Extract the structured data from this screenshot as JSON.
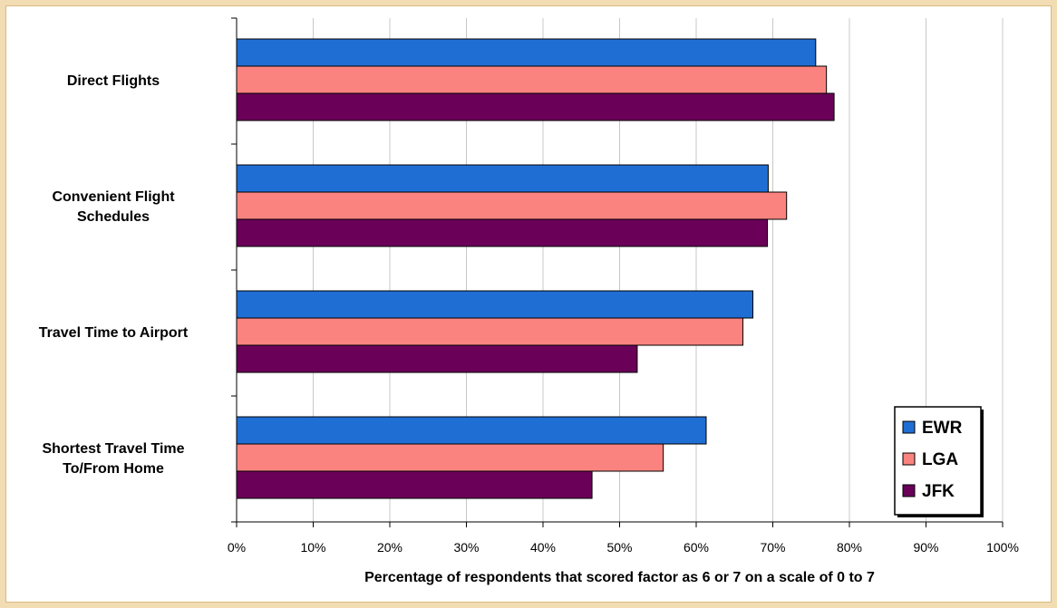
{
  "chart_data": {
    "type": "bar",
    "orientation": "horizontal",
    "categories": [
      [
        "Direct Flights"
      ],
      [
        "Convenient Flight",
        "Schedules"
      ],
      [
        "Travel Time to Airport"
      ],
      [
        "Shortest Travel Time",
        "To/From Home"
      ]
    ],
    "series": [
      {
        "name": "EWR",
        "color": "#1f6ed4",
        "values": [
          75.6,
          69.4,
          67.4,
          61.3
        ]
      },
      {
        "name": "LGA",
        "color": "#fa8380",
        "values": [
          77.0,
          71.8,
          66.1,
          55.7
        ]
      },
      {
        "name": "JFK",
        "color": "#6a0058",
        "values": [
          78.0,
          69.3,
          52.3,
          46.4
        ]
      }
    ],
    "xlim": [
      0,
      100
    ],
    "xticks": [
      "0%",
      "10%",
      "20%",
      "30%",
      "40%",
      "50%",
      "60%",
      "70%",
      "80%",
      "90%",
      "100%"
    ],
    "xlabel": "Percentage of respondents that scored factor as 6 or 7 on a scale of 0 to 7",
    "grid": "vertical",
    "legend_position": "bottom-right"
  }
}
